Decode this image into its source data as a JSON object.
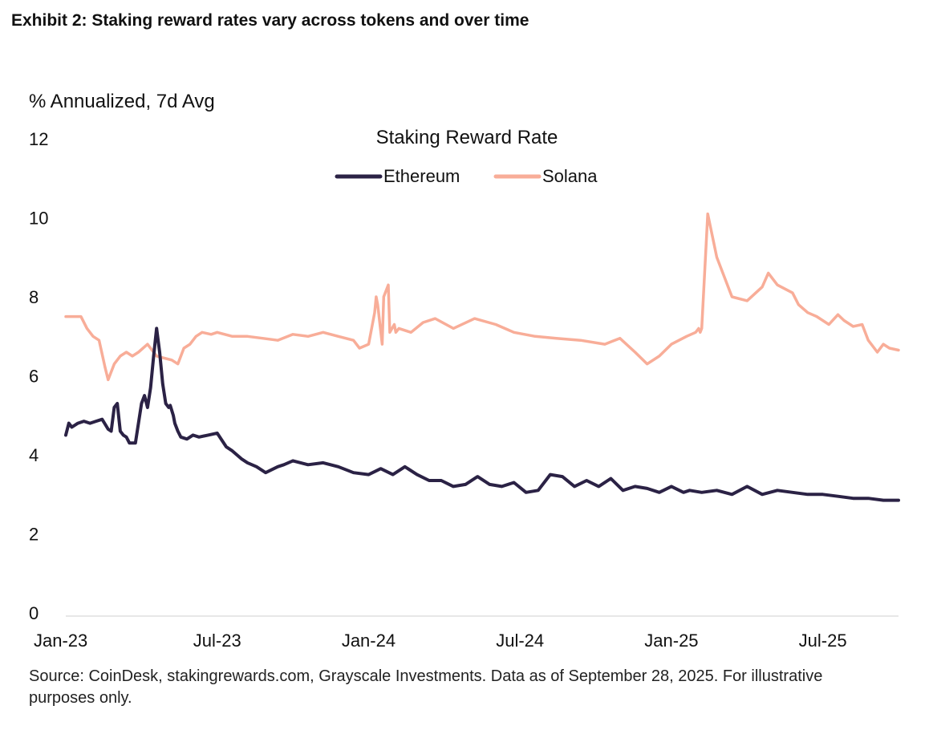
{
  "exhibit_title": "Exhibit 2: Staking reward rates vary across tokens and over time",
  "source_note": "Source: CoinDesk, stakingrewards.com, Grayscale Investments. Data as of September 28, 2025. For illustrative purposes only.",
  "colors": {
    "ethereum": "#2b2245",
    "solana": "#f8ad98",
    "text": "#111111"
  },
  "chart_data": {
    "type": "line",
    "title": "Staking Reward Rate",
    "ylabel": "% Annualized, 7d Avg",
    "xlabel": "",
    "ylim": [
      0,
      12
    ],
    "yticks": [
      0,
      2,
      4,
      6,
      8,
      10,
      12
    ],
    "xlim": [
      2023.0,
      2025.75
    ],
    "xticks": [
      {
        "x": 2023.0,
        "label": "Jan-23"
      },
      {
        "x": 2023.5,
        "label": "Jul-23"
      },
      {
        "x": 2024.0,
        "label": "Jan-24"
      },
      {
        "x": 2024.5,
        "label": "Jul-24"
      },
      {
        "x": 2025.0,
        "label": "Jan-25"
      },
      {
        "x": 2025.5,
        "label": "Jul-25"
      }
    ],
    "grid": false,
    "legend_position": "top-center",
    "series": [
      {
        "name": "Ethereum",
        "x": [
          2023.0,
          2023.01,
          2023.02,
          2023.04,
          2023.06,
          2023.08,
          2023.1,
          2023.12,
          2023.14,
          2023.15,
          2023.16,
          2023.17,
          2023.18,
          2023.19,
          2023.2,
          2023.21,
          2023.23,
          2023.25,
          2023.26,
          2023.27,
          2023.28,
          2023.29,
          2023.3,
          2023.31,
          2023.32,
          2023.33,
          2023.34,
          2023.345,
          2023.355,
          2023.36,
          2023.37,
          2023.38,
          2023.4,
          2023.42,
          2023.44,
          2023.47,
          2023.5,
          2023.53,
          2023.55,
          2023.58,
          2023.6,
          2023.63,
          2023.66,
          2023.7,
          2023.72,
          2023.75,
          2023.8,
          2023.85,
          2023.9,
          2023.95,
          2024.0,
          2024.04,
          2024.08,
          2024.12,
          2024.16,
          2024.2,
          2024.24,
          2024.28,
          2024.32,
          2024.36,
          2024.4,
          2024.44,
          2024.48,
          2024.52,
          2024.56,
          2024.6,
          2024.64,
          2024.68,
          2024.72,
          2024.76,
          2024.8,
          2024.84,
          2024.88,
          2024.92,
          2024.96,
          2025.0,
          2025.04,
          2025.06,
          2025.1,
          2025.15,
          2025.2,
          2025.25,
          2025.3,
          2025.35,
          2025.4,
          2025.45,
          2025.5,
          2025.55,
          2025.6,
          2025.65,
          2025.7,
          2025.72,
          2025.75
        ],
        "values": [
          4.5,
          4.8,
          4.7,
          4.8,
          4.85,
          4.8,
          4.85,
          4.9,
          4.65,
          4.6,
          5.2,
          5.3,
          4.6,
          4.5,
          4.45,
          4.3,
          4.3,
          5.3,
          5.5,
          5.2,
          5.7,
          6.5,
          7.2,
          6.6,
          5.8,
          5.3,
          5.2,
          5.25,
          5.0,
          4.8,
          4.6,
          4.45,
          4.4,
          4.5,
          4.45,
          4.5,
          4.55,
          4.2,
          4.1,
          3.9,
          3.8,
          3.7,
          3.55,
          3.7,
          3.75,
          3.85,
          3.75,
          3.8,
          3.7,
          3.55,
          3.5,
          3.65,
          3.5,
          3.7,
          3.5,
          3.35,
          3.35,
          3.2,
          3.25,
          3.45,
          3.25,
          3.2,
          3.3,
          3.05,
          3.1,
          3.5,
          3.45,
          3.2,
          3.35,
          3.2,
          3.4,
          3.1,
          3.2,
          3.15,
          3.05,
          3.2,
          3.05,
          3.1,
          3.05,
          3.1,
          3.0,
          3.2,
          3.0,
          3.1,
          3.05,
          3.0,
          3.0,
          2.95,
          2.9,
          2.9,
          2.85,
          2.85,
          2.85
        ]
      },
      {
        "name": "Solana",
        "x": [
          2023.0,
          2023.05,
          2023.07,
          2023.09,
          2023.11,
          2023.13,
          2023.14,
          2023.145,
          2023.16,
          2023.18,
          2023.2,
          2023.22,
          2023.24,
          2023.27,
          2023.3,
          2023.35,
          2023.37,
          2023.39,
          2023.41,
          2023.43,
          2023.45,
          2023.48,
          2023.5,
          2023.55,
          2023.6,
          2023.65,
          2023.7,
          2023.75,
          2023.8,
          2023.85,
          2023.9,
          2023.95,
          2023.97,
          2024.0,
          2024.02,
          2024.025,
          2024.03,
          2024.045,
          2024.05,
          2024.065,
          2024.07,
          2024.085,
          2024.09,
          2024.1,
          2024.14,
          2024.18,
          2024.22,
          2024.28,
          2024.35,
          2024.42,
          2024.48,
          2024.55,
          2024.62,
          2024.7,
          2024.78,
          2024.83,
          2024.88,
          2024.92,
          2024.96,
          2025.0,
          2025.05,
          2025.08,
          2025.09,
          2025.095,
          2025.1,
          2025.12,
          2025.15,
          2025.2,
          2025.25,
          2025.3,
          2025.32,
          2025.35,
          2025.4,
          2025.42,
          2025.45,
          2025.48,
          2025.52,
          2025.55,
          2025.57,
          2025.6,
          2025.63,
          2025.65,
          2025.68,
          2025.7,
          2025.72,
          2025.75
        ],
        "values": [
          7.5,
          7.5,
          7.2,
          7.0,
          6.9,
          6.2,
          5.9,
          6.0,
          6.3,
          6.5,
          6.6,
          6.5,
          6.6,
          6.8,
          6.5,
          6.4,
          6.3,
          6.7,
          6.8,
          7.0,
          7.1,
          7.05,
          7.1,
          7.0,
          7.0,
          6.95,
          6.9,
          7.05,
          7.0,
          7.1,
          7.0,
          6.9,
          6.7,
          6.8,
          7.6,
          8.0,
          7.8,
          6.8,
          8.0,
          8.3,
          7.1,
          7.3,
          7.1,
          7.2,
          7.1,
          7.35,
          7.45,
          7.2,
          7.45,
          7.3,
          7.1,
          7.0,
          6.95,
          6.9,
          6.8,
          6.95,
          6.6,
          6.3,
          6.5,
          6.8,
          7.0,
          7.1,
          7.2,
          7.1,
          7.2,
          10.1,
          9.0,
          8.0,
          7.9,
          8.25,
          8.6,
          8.3,
          8.1,
          7.8,
          7.6,
          7.5,
          7.3,
          7.55,
          7.4,
          7.25,
          7.3,
          6.9,
          6.6,
          6.8,
          6.7,
          6.65
        ]
      }
    ]
  }
}
